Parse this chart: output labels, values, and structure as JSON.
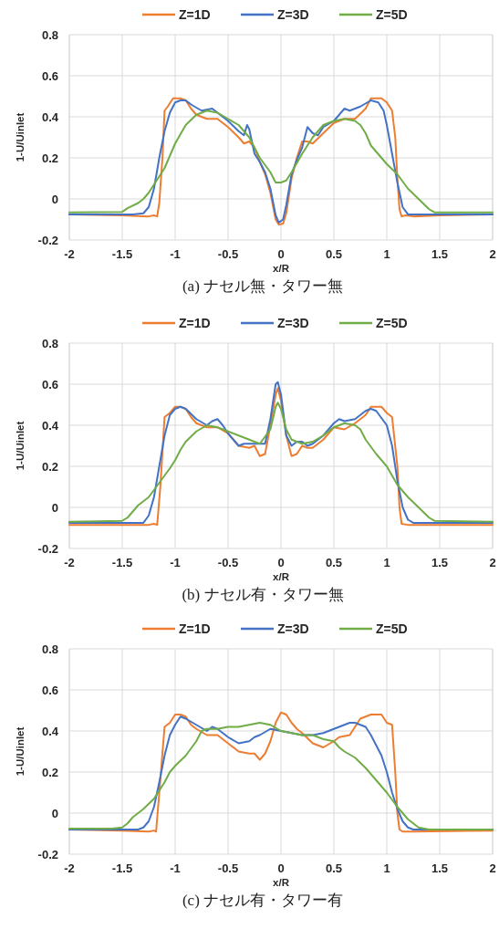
{
  "chart_data": [
    {
      "type": "line",
      "title": "(a) ナセル無・タワー無",
      "xlabel": "x/R",
      "ylabel": "1-U/Uinlet",
      "xlim": [
        -2,
        2
      ],
      "ylim": [
        -0.2,
        0.8
      ],
      "xticks": [
        -2,
        -1.5,
        -1,
        -0.5,
        0,
        0.5,
        1,
        1.5,
        2
      ],
      "yticks": [
        -0.2,
        0,
        0.2,
        0.4,
        0.6,
        0.8
      ],
      "grid": true,
      "legend": "top",
      "line_style": "solid",
      "marker": "none",
      "series": [
        {
          "name": "Z=1D",
          "color": "#ed7d31",
          "x": [
            -2,
            -1.5,
            -1.25,
            -1.2,
            -1.17,
            -1.15,
            -1.12,
            -1.1,
            -1.07,
            -1.02,
            -0.95,
            -0.9,
            -0.85,
            -0.8,
            -0.7,
            -0.6,
            -0.5,
            -0.4,
            -0.35,
            -0.3,
            -0.25,
            -0.2,
            -0.15,
            -0.1,
            -0.05,
            -0.02,
            0.02,
            0.05,
            0.1,
            0.15,
            0.2,
            0.25,
            0.3,
            0.4,
            0.5,
            0.6,
            0.7,
            0.8,
            0.85,
            0.9,
            0.95,
            1.0,
            1.05,
            1.08,
            1.1,
            1.12,
            1.14,
            1.18,
            1.25,
            1.5,
            2
          ],
          "values": [
            -0.075,
            -0.08,
            -0.085,
            -0.08,
            -0.085,
            -0.02,
            0.2,
            0.43,
            0.45,
            0.49,
            0.49,
            0.48,
            0.44,
            0.41,
            0.39,
            0.39,
            0.35,
            0.3,
            0.27,
            0.28,
            0.25,
            0.18,
            0.12,
            0.03,
            -0.1,
            -0.125,
            -0.12,
            -0.07,
            0.1,
            0.2,
            0.28,
            0.28,
            0.27,
            0.32,
            0.37,
            0.39,
            0.39,
            0.44,
            0.49,
            0.49,
            0.49,
            0.47,
            0.43,
            0.3,
            0.1,
            -0.05,
            -0.085,
            -0.08,
            -0.085,
            -0.08,
            -0.075
          ]
        },
        {
          "name": "Z=3D",
          "color": "#4472c4",
          "x": [
            -2,
            -1.4,
            -1.3,
            -1.25,
            -1.2,
            -1.15,
            -1.1,
            -1.05,
            -1.0,
            -0.95,
            -0.9,
            -0.85,
            -0.75,
            -0.65,
            -0.6,
            -0.5,
            -0.4,
            -0.35,
            -0.32,
            -0.3,
            -0.25,
            -0.2,
            -0.15,
            -0.1,
            -0.05,
            -0.02,
            0.02,
            0.05,
            0.1,
            0.15,
            0.2,
            0.25,
            0.3,
            0.35,
            0.4,
            0.5,
            0.6,
            0.65,
            0.75,
            0.85,
            0.92,
            0.97,
            1.0,
            1.05,
            1.1,
            1.15,
            1.2,
            2
          ],
          "values": [
            -0.075,
            -0.075,
            -0.07,
            -0.04,
            0.05,
            0.2,
            0.33,
            0.42,
            0.47,
            0.48,
            0.48,
            0.46,
            0.43,
            0.44,
            0.42,
            0.38,
            0.33,
            0.31,
            0.36,
            0.34,
            0.22,
            0.18,
            0.13,
            0.05,
            -0.08,
            -0.115,
            -0.1,
            -0.03,
            0.12,
            0.19,
            0.25,
            0.35,
            0.32,
            0.31,
            0.35,
            0.38,
            0.44,
            0.43,
            0.45,
            0.48,
            0.47,
            0.43,
            0.36,
            0.22,
            0.08,
            -0.04,
            -0.075,
            -0.075
          ]
        },
        {
          "name": "Z=5D",
          "color": "#70ad47",
          "x": [
            -2,
            -1.5,
            -1.45,
            -1.35,
            -1.3,
            -1.25,
            -1.2,
            -1.1,
            -1.0,
            -0.9,
            -0.8,
            -0.7,
            -0.6,
            -0.5,
            -0.4,
            -0.3,
            -0.2,
            -0.1,
            -0.05,
            0,
            0.05,
            0.1,
            0.2,
            0.3,
            0.4,
            0.5,
            0.6,
            0.7,
            0.75,
            0.8,
            0.85,
            0.9,
            1.0,
            1.1,
            1.2,
            1.3,
            1.4,
            1.45,
            2
          ],
          "values": [
            -0.065,
            -0.063,
            -0.045,
            -0.02,
            0.0,
            0.03,
            0.07,
            0.15,
            0.27,
            0.36,
            0.41,
            0.43,
            0.42,
            0.39,
            0.36,
            0.3,
            0.2,
            0.13,
            0.08,
            0.08,
            0.09,
            0.13,
            0.22,
            0.3,
            0.36,
            0.38,
            0.39,
            0.38,
            0.36,
            0.32,
            0.26,
            0.23,
            0.17,
            0.12,
            0.05,
            0.0,
            -0.05,
            -0.065,
            -0.065
          ]
        }
      ]
    },
    {
      "type": "line",
      "title": "(b) ナセル有・タワー無",
      "xlabel": "x/R",
      "ylabel": "1-U/Uinlet",
      "xlim": [
        -2,
        2
      ],
      "ylim": [
        -0.2,
        0.8
      ],
      "xticks": [
        -2,
        -1.5,
        -1,
        -0.5,
        0,
        0.5,
        1,
        1.5,
        2
      ],
      "yticks": [
        -0.2,
        0,
        0.2,
        0.4,
        0.6,
        0.8
      ],
      "grid": true,
      "legend": "top",
      "line_style": "solid",
      "marker": "none",
      "series": [
        {
          "name": "Z=1D",
          "color": "#ed7d31",
          "x": [
            -2,
            -1.25,
            -1.2,
            -1.17,
            -1.14,
            -1.1,
            -1.05,
            -1.0,
            -0.95,
            -0.9,
            -0.85,
            -0.8,
            -0.7,
            -0.6,
            -0.5,
            -0.4,
            -0.3,
            -0.25,
            -0.2,
            -0.15,
            -0.1,
            -0.05,
            -0.03,
            0,
            0.05,
            0.1,
            0.15,
            0.2,
            0.25,
            0.3,
            0.4,
            0.5,
            0.6,
            0.7,
            0.8,
            0.85,
            0.95,
            1.0,
            1.05,
            1.1,
            1.12,
            1.14,
            1.2,
            1.5,
            2
          ],
          "values": [
            -0.085,
            -0.085,
            -0.08,
            -0.085,
            0.1,
            0.44,
            0.46,
            0.49,
            0.49,
            0.48,
            0.44,
            0.41,
            0.39,
            0.39,
            0.36,
            0.3,
            0.29,
            0.3,
            0.25,
            0.26,
            0.4,
            0.55,
            0.58,
            0.52,
            0.35,
            0.25,
            0.26,
            0.3,
            0.29,
            0.29,
            0.33,
            0.39,
            0.38,
            0.41,
            0.45,
            0.49,
            0.49,
            0.46,
            0.44,
            0.2,
            0.0,
            -0.08,
            -0.085,
            -0.085,
            -0.085
          ]
        },
        {
          "name": "Z=3D",
          "color": "#4472c4",
          "x": [
            -2,
            -1.3,
            -1.25,
            -1.2,
            -1.15,
            -1.1,
            -1.05,
            -1.0,
            -0.95,
            -0.9,
            -0.8,
            -0.7,
            -0.65,
            -0.6,
            -0.55,
            -0.5,
            -0.4,
            -0.35,
            -0.3,
            -0.2,
            -0.15,
            -0.1,
            -0.05,
            -0.03,
            0,
            0.05,
            0.1,
            0.15,
            0.2,
            0.25,
            0.3,
            0.4,
            0.5,
            0.55,
            0.6,
            0.7,
            0.8,
            0.85,
            0.9,
            1.0,
            1.05,
            1.1,
            1.15,
            1.2,
            1.25,
            2
          ],
          "values": [
            -0.075,
            -0.075,
            -0.04,
            0.05,
            0.2,
            0.35,
            0.45,
            0.48,
            0.49,
            0.48,
            0.43,
            0.4,
            0.42,
            0.43,
            0.4,
            0.36,
            0.3,
            0.31,
            0.31,
            0.31,
            0.31,
            0.43,
            0.6,
            0.61,
            0.55,
            0.35,
            0.3,
            0.32,
            0.32,
            0.3,
            0.31,
            0.35,
            0.41,
            0.43,
            0.42,
            0.43,
            0.47,
            0.48,
            0.47,
            0.4,
            0.3,
            0.13,
            0.0,
            -0.06,
            -0.075,
            -0.075
          ]
        },
        {
          "name": "Z=5D",
          "color": "#70ad47",
          "x": [
            -2,
            -1.5,
            -1.45,
            -1.4,
            -1.35,
            -1.25,
            -1.15,
            -1.05,
            -1.0,
            -0.95,
            -0.9,
            -0.8,
            -0.7,
            -0.6,
            -0.5,
            -0.4,
            -0.3,
            -0.2,
            -0.1,
            -0.05,
            -0.03,
            0,
            0.05,
            0.1,
            0.2,
            0.3,
            0.4,
            0.5,
            0.6,
            0.7,
            0.75,
            0.8,
            0.9,
            1.0,
            1.1,
            1.2,
            1.3,
            1.4,
            1.45,
            2
          ],
          "values": [
            -0.07,
            -0.065,
            -0.05,
            -0.02,
            0.01,
            0.05,
            0.12,
            0.19,
            0.23,
            0.28,
            0.32,
            0.37,
            0.4,
            0.39,
            0.37,
            0.35,
            0.33,
            0.31,
            0.38,
            0.49,
            0.51,
            0.48,
            0.38,
            0.33,
            0.31,
            0.32,
            0.35,
            0.39,
            0.41,
            0.4,
            0.38,
            0.33,
            0.26,
            0.2,
            0.11,
            0.05,
            0.0,
            -0.05,
            -0.065,
            -0.07
          ]
        }
      ]
    },
    {
      "type": "line",
      "title": "(c) ナセル有・タワー有",
      "xlabel": "x/R",
      "ylabel": "1-U/Uinlet",
      "xlim": [
        -2,
        2
      ],
      "ylim": [
        -0.2,
        0.8
      ],
      "xticks": [
        -2,
        -1.5,
        -1,
        -0.5,
        0,
        0.5,
        1,
        1.5,
        2
      ],
      "yticks": [
        -0.2,
        0,
        0.2,
        0.4,
        0.6,
        0.8
      ],
      "grid": true,
      "legend": "top",
      "line_style": "solid",
      "marker": "none",
      "series": [
        {
          "name": "Z=1D",
          "color": "#ed7d31",
          "x": [
            -2,
            -1.5,
            -1.25,
            -1.2,
            -1.18,
            -1.15,
            -1.1,
            -1.05,
            -1.0,
            -0.95,
            -0.9,
            -0.85,
            -0.8,
            -0.7,
            -0.6,
            -0.5,
            -0.4,
            -0.3,
            -0.25,
            -0.2,
            -0.15,
            -0.1,
            -0.05,
            0,
            0.05,
            0.1,
            0.15,
            0.2,
            0.3,
            0.35,
            0.4,
            0.5,
            0.55,
            0.65,
            0.7,
            0.75,
            0.85,
            0.95,
            1.0,
            1.05,
            1.08,
            1.1,
            1.12,
            1.15,
            1.25,
            2
          ],
          "values": [
            -0.08,
            -0.085,
            -0.09,
            -0.085,
            -0.09,
            0.1,
            0.42,
            0.44,
            0.48,
            0.48,
            0.47,
            0.43,
            0.41,
            0.38,
            0.38,
            0.34,
            0.3,
            0.29,
            0.29,
            0.26,
            0.29,
            0.35,
            0.44,
            0.49,
            0.48,
            0.44,
            0.41,
            0.39,
            0.34,
            0.33,
            0.32,
            0.35,
            0.37,
            0.38,
            0.42,
            0.46,
            0.48,
            0.48,
            0.44,
            0.43,
            0.2,
            0.0,
            -0.08,
            -0.09,
            -0.09,
            -0.085
          ]
        },
        {
          "name": "Z=3D",
          "color": "#4472c4",
          "x": [
            -2,
            -1.35,
            -1.3,
            -1.25,
            -1.2,
            -1.15,
            -1.1,
            -1.05,
            -1.0,
            -0.95,
            -0.9,
            -0.8,
            -0.7,
            -0.65,
            -0.6,
            -0.5,
            -0.4,
            -0.3,
            -0.25,
            -0.2,
            -0.1,
            0,
            0.1,
            0.2,
            0.3,
            0.4,
            0.5,
            0.6,
            0.65,
            0.7,
            0.8,
            0.85,
            0.9,
            0.95,
            1.0,
            1.05,
            1.1,
            1.15,
            1.2,
            1.25,
            2
          ],
          "values": [
            -0.08,
            -0.08,
            -0.07,
            -0.04,
            0.03,
            0.15,
            0.28,
            0.38,
            0.43,
            0.47,
            0.46,
            0.43,
            0.4,
            0.42,
            0.41,
            0.37,
            0.34,
            0.35,
            0.37,
            0.38,
            0.41,
            0.4,
            0.39,
            0.38,
            0.38,
            0.39,
            0.41,
            0.43,
            0.44,
            0.44,
            0.42,
            0.38,
            0.33,
            0.28,
            0.2,
            0.1,
            0.02,
            -0.04,
            -0.07,
            -0.08,
            -0.08
          ]
        },
        {
          "name": "Z=5D",
          "color": "#70ad47",
          "x": [
            -2,
            -1.6,
            -1.5,
            -1.45,
            -1.4,
            -1.3,
            -1.2,
            -1.1,
            -1.05,
            -1.0,
            -0.9,
            -0.8,
            -0.75,
            -0.7,
            -0.6,
            -0.5,
            -0.4,
            -0.3,
            -0.2,
            -0.1,
            0,
            0.1,
            0.2,
            0.3,
            0.4,
            0.5,
            0.55,
            0.6,
            0.7,
            0.8,
            0.9,
            1.0,
            1.1,
            1.2,
            1.3,
            1.4,
            2
          ],
          "values": [
            -0.075,
            -0.075,
            -0.07,
            -0.05,
            -0.02,
            0.02,
            0.07,
            0.15,
            0.2,
            0.23,
            0.28,
            0.35,
            0.4,
            0.41,
            0.41,
            0.42,
            0.42,
            0.43,
            0.44,
            0.43,
            0.4,
            0.39,
            0.38,
            0.38,
            0.36,
            0.35,
            0.32,
            0.3,
            0.27,
            0.22,
            0.16,
            0.1,
            0.03,
            -0.03,
            -0.07,
            -0.08,
            -0.08
          ]
        }
      ]
    }
  ]
}
